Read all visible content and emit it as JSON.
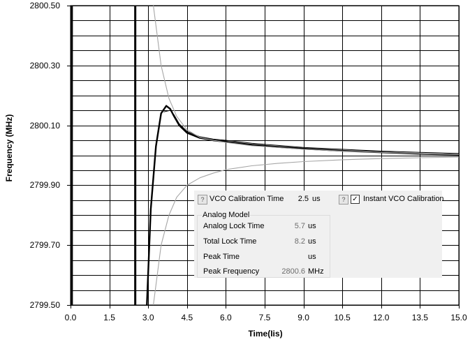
{
  "chart_data": {
    "type": "line",
    "xlabel": "Time(Ііs)",
    "ylabel": "Frequency (MHz)",
    "xlim": [
      0,
      15
    ],
    "ylim": [
      2799.5,
      2800.5
    ],
    "x_ticks": [
      "0.0",
      "1.5",
      "3.0",
      "4.5",
      "6.0",
      "7.5",
      "9.0",
      "10.5",
      "12.0",
      "13.5",
      "15.0"
    ],
    "y_ticks": [
      "2800.50",
      "2800.30",
      "2800.10",
      "2799.90",
      "2799.70",
      "2799.50"
    ],
    "vertical_markers": [
      0.05,
      2.5
    ],
    "series": [
      {
        "style": "thick-black",
        "x": [
          2.95,
          3.1,
          3.3,
          3.5,
          3.7,
          3.85,
          4.0,
          4.2,
          4.5,
          5.0,
          5.5,
          6.0,
          7.0,
          8.0,
          9.0,
          10.5,
          12.0,
          13.5,
          15.0
        ],
        "y": [
          2799.5,
          2799.82,
          2800.03,
          2800.14,
          2800.165,
          2800.155,
          2800.13,
          2800.1,
          2800.075,
          2800.058,
          2800.05,
          2800.045,
          2800.035,
          2800.028,
          2800.022,
          2800.015,
          2800.01,
          2800.005,
          2800.002
        ]
      },
      {
        "style": "thin-black",
        "x": [
          3.6,
          3.85,
          4.0,
          4.2,
          4.5,
          5.0,
          5.5,
          6.0,
          7.0,
          8.0,
          9.0,
          10.5,
          12.0,
          13.5,
          15.0
        ],
        "y": [
          2800.145,
          2800.15,
          2800.135,
          2800.105,
          2800.08,
          2800.062,
          2800.054,
          2800.05,
          2800.04,
          2800.033,
          2800.026,
          2800.02,
          2800.014,
          2800.01,
          2800.006
        ]
      },
      {
        "style": "gray-upper",
        "x": [
          3.2,
          3.5,
          3.8,
          4.1,
          4.5,
          5.0,
          5.5,
          6.0,
          7.0,
          8.0,
          9.0,
          10.5,
          12.0,
          13.5,
          15.0
        ],
        "y": [
          2800.5,
          2800.3,
          2800.19,
          2800.13,
          2800.085,
          2800.06,
          2800.05,
          2800.043,
          2800.032,
          2800.026,
          2800.02,
          2800.014,
          2800.01,
          2800.006,
          2800.003
        ]
      },
      {
        "style": "gray-lower",
        "x": [
          3.2,
          3.5,
          3.8,
          4.1,
          4.5,
          5.0,
          5.5,
          6.0,
          7.0,
          8.0,
          9.0,
          10.5,
          12.0,
          13.5,
          15.0
        ],
        "y": [
          2799.5,
          2799.7,
          2799.8,
          2799.86,
          2799.9,
          2799.925,
          2799.94,
          2799.952,
          2799.965,
          2799.973,
          2799.979,
          2799.985,
          2799.989,
          2799.992,
          2799.994
        ]
      }
    ]
  },
  "panel": {
    "vco_cal_label": "VCO Calibration Time",
    "vco_cal_value": "2.5",
    "vco_cal_unit": "us",
    "instant_label": "Instant VCO Calibration",
    "instant_checked": "✓",
    "help_glyph": "?",
    "group_title": "Analog Model",
    "rows": [
      {
        "label": "Analog Lock Time",
        "value": "5.7",
        "unit": "us"
      },
      {
        "label": "Total Lock Time",
        "value": "8.2",
        "unit": "us"
      },
      {
        "label": "Peak Time",
        "value": "",
        "unit": "us"
      },
      {
        "label": "Peak Frequency",
        "value": "2800.6",
        "unit": "MHz"
      }
    ]
  }
}
